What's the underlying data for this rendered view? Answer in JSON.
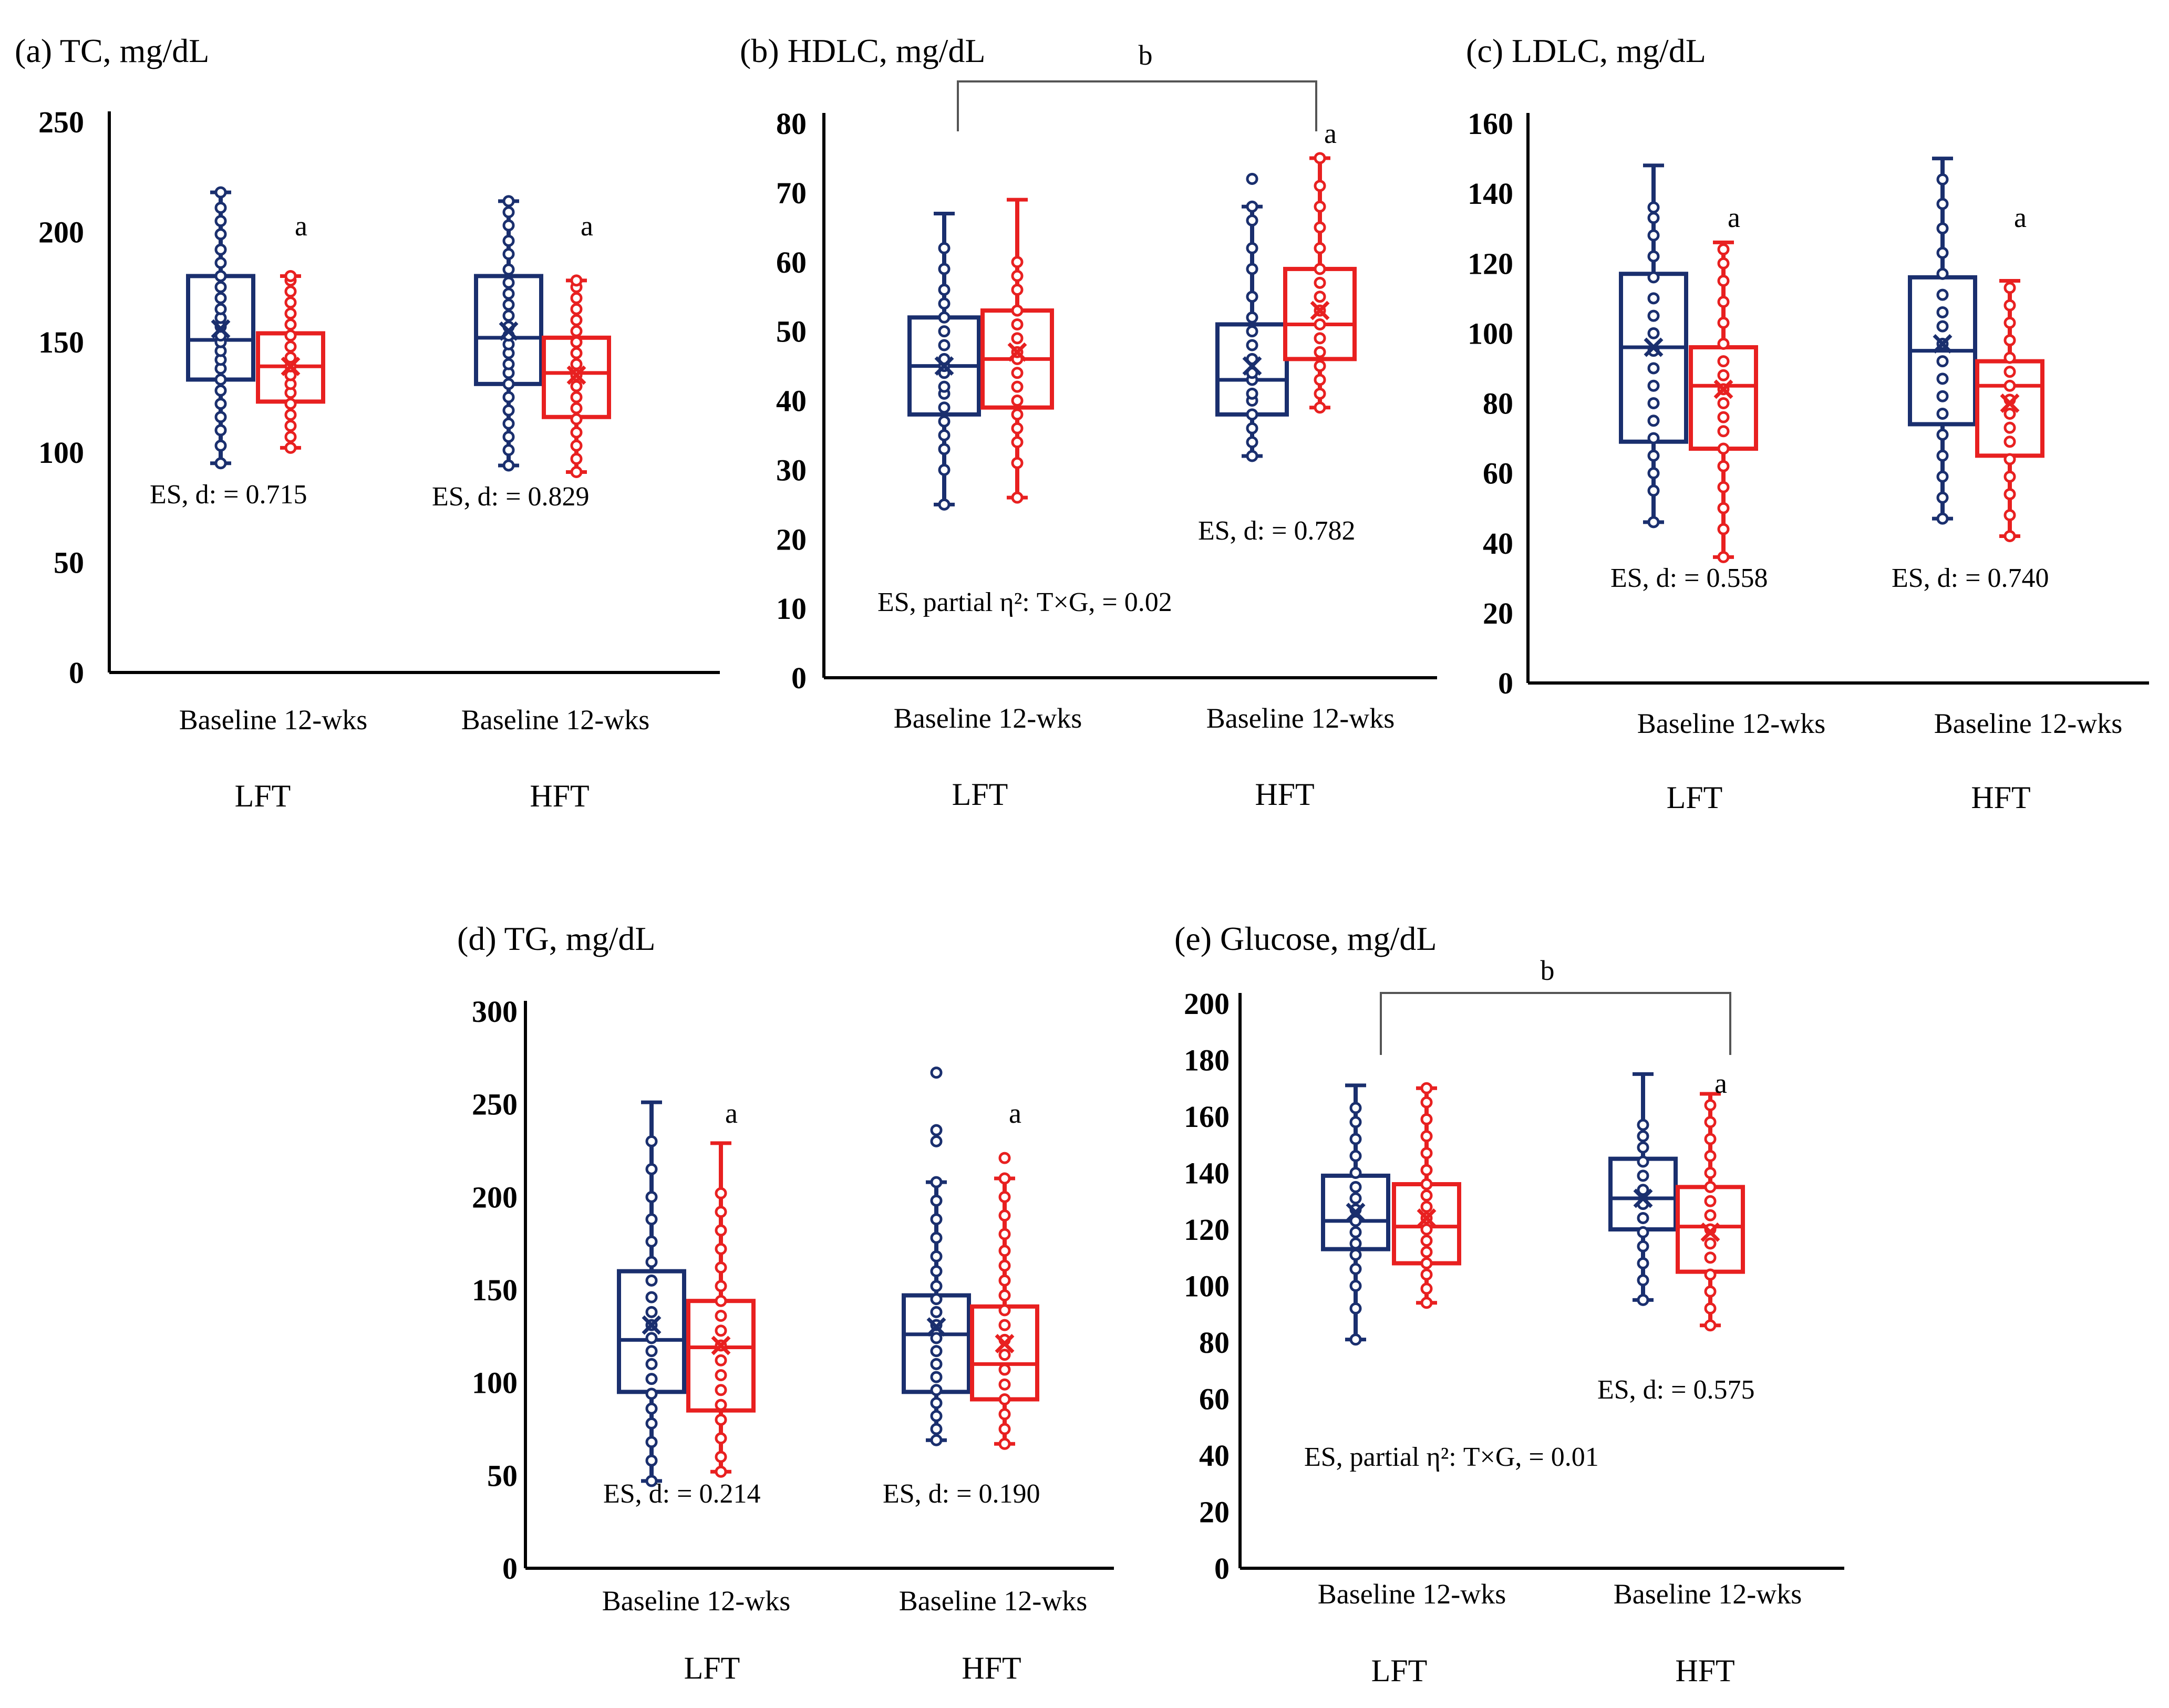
{
  "colors": {
    "baseline": "#1a2f6e",
    "week12": "#e82020",
    "axis": "#000000",
    "bracket": "#555555"
  },
  "chart_data": [
    {
      "type": "box",
      "panel": "a",
      "title": "(a) TC, mg/dL",
      "ylim": [
        0,
        250
      ],
      "yticks": [
        0,
        50,
        100,
        150,
        200,
        250
      ],
      "x_tick_labels": [
        "Baseline 12-wks",
        "Baseline 12-wks"
      ],
      "groups": [
        "LFT",
        "HFT"
      ],
      "series": [
        {
          "group": "LFT",
          "name": "Baseline",
          "color": "baseline",
          "min": 95,
          "q1": 133,
          "median": 151,
          "q3": 180,
          "max": 218,
          "mean": 156,
          "points": [
            95,
            103,
            110,
            116,
            122,
            128,
            133,
            138,
            142,
            146,
            150,
            153,
            157,
            161,
            165,
            170,
            175,
            180,
            186,
            192,
            199,
            205,
            211,
            218
          ]
        },
        {
          "group": "LFT",
          "name": "12-wks",
          "color": "week12",
          "min": 102,
          "q1": 123,
          "median": 139,
          "q3": 154,
          "max": 180,
          "mean": 139,
          "label": "a",
          "points": [
            102,
            107,
            112,
            117,
            122,
            127,
            131,
            135,
            139,
            143,
            148,
            153,
            158,
            163,
            168,
            173,
            178,
            180
          ]
        },
        {
          "group": "HFT",
          "name": "Baseline",
          "color": "baseline",
          "min": 94,
          "q1": 131,
          "median": 152,
          "q3": 180,
          "max": 214,
          "mean": 155,
          "points": [
            94,
            101,
            107,
            113,
            119,
            125,
            131,
            136,
            140,
            145,
            149,
            153,
            157,
            162,
            167,
            172,
            177,
            183,
            190,
            196,
            203,
            209,
            214
          ]
        },
        {
          "group": "HFT",
          "name": "12-wks",
          "color": "week12",
          "min": 91,
          "q1": 116,
          "median": 136,
          "q3": 152,
          "max": 178,
          "mean": 135,
          "label": "a",
          "points": [
            91,
            97,
            103,
            109,
            115,
            120,
            125,
            130,
            135,
            140,
            145,
            150,
            155,
            160,
            165,
            170,
            175,
            178
          ]
        }
      ],
      "effect_sizes": [
        "ES,  d: = 0.715",
        "ES,  d: = 0.829"
      ],
      "group_labels": [
        "LFT",
        "HFT"
      ]
    },
    {
      "type": "box",
      "panel": "b",
      "title": "(b) HDLC,  mg/dL",
      "ylim": [
        0,
        80
      ],
      "yticks": [
        0,
        10,
        20,
        30,
        40,
        50,
        60,
        70,
        80
      ],
      "x_tick_labels": [
        "Baseline 12-wks",
        "Baseline 12-wks"
      ],
      "groups": [
        "LFT",
        "HFT"
      ],
      "bracket_label": "b",
      "series": [
        {
          "group": "LFT",
          "name": "Baseline",
          "color": "baseline",
          "min": 25,
          "q1": 38,
          "median": 45,
          "q3": 52,
          "max": 67,
          "mean": 45,
          "points": [
            25,
            30,
            33,
            35,
            37,
            39,
            41,
            42,
            44,
            45,
            46,
            48,
            50,
            52,
            54,
            56,
            59,
            62
          ]
        },
        {
          "group": "LFT",
          "name": "12-wks",
          "color": "week12",
          "min": 26,
          "q1": 39,
          "median": 46,
          "q3": 53,
          "max": 69,
          "mean": 47,
          "points": [
            26,
            31,
            34,
            36,
            38,
            40,
            42,
            44,
            46,
            47,
            49,
            51,
            53,
            56,
            58,
            60
          ]
        },
        {
          "group": "HFT",
          "name": "Baseline",
          "color": "baseline",
          "min": 32,
          "q1": 38,
          "median": 43,
          "q3": 51,
          "max": 68,
          "mean": 45,
          "points": [
            32,
            34,
            36,
            38,
            40,
            41,
            43,
            44,
            46,
            48,
            50,
            52,
            55,
            59,
            62,
            66,
            68,
            72
          ]
        },
        {
          "group": "HFT",
          "name": "12-wks",
          "color": "week12",
          "min": 39,
          "q1": 46,
          "median": 51,
          "q3": 59,
          "max": 75,
          "mean": 53,
          "label": "a",
          "points": [
            39,
            41,
            43,
            45,
            47,
            49,
            51,
            53,
            55,
            57,
            59,
            62,
            65,
            68,
            71,
            75
          ]
        }
      ],
      "effect_sizes": [
        "ES,  d: = 0.782"
      ],
      "anova": "ES,  partial η²:  T×G, = 0.02",
      "group_labels": [
        "LFT",
        "HFT"
      ]
    },
    {
      "type": "box",
      "panel": "c",
      "title": "(c) LDLC,  mg/dL",
      "ylim": [
        0,
        160
      ],
      "yticks": [
        0,
        20,
        40,
        60,
        80,
        100,
        120,
        140,
        160
      ],
      "x_tick_labels": [
        "Baseline 12-wks",
        "Baseline 12-wks"
      ],
      "groups": [
        "LFT",
        "HFT"
      ],
      "series": [
        {
          "group": "LFT",
          "name": "Baseline",
          "color": "baseline",
          "min": 46,
          "q1": 69,
          "median": 96,
          "q3": 117,
          "max": 148,
          "mean": 96,
          "points": [
            46,
            55,
            60,
            65,
            70,
            75,
            80,
            85,
            90,
            95,
            100,
            105,
            110,
            116,
            122,
            128,
            133,
            136
          ]
        },
        {
          "group": "LFT",
          "name": "12-wks",
          "color": "week12",
          "min": 36,
          "q1": 67,
          "median": 85,
          "q3": 96,
          "max": 126,
          "mean": 84,
          "label": "a",
          "points": [
            36,
            44,
            50,
            56,
            62,
            67,
            72,
            76,
            80,
            84,
            88,
            92,
            97,
            103,
            109,
            115,
            120,
            124
          ]
        },
        {
          "group": "HFT",
          "name": "Baseline",
          "color": "baseline",
          "min": 47,
          "q1": 74,
          "median": 95,
          "q3": 116,
          "max": 150,
          "mean": 97,
          "points": [
            47,
            53,
            59,
            65,
            71,
            77,
            82,
            87,
            92,
            97,
            102,
            106,
            111,
            117,
            123,
            130,
            137,
            144
          ]
        },
        {
          "group": "HFT",
          "name": "12-wks",
          "color": "week12",
          "min": 42,
          "q1": 65,
          "median": 85,
          "q3": 92,
          "max": 115,
          "mean": 80,
          "label": "a",
          "points": [
            42,
            48,
            54,
            59,
            64,
            69,
            73,
            77,
            81,
            85,
            89,
            93,
            98,
            103,
            108,
            113
          ]
        }
      ],
      "effect_sizes": [
        "ES,  d: = 0.558",
        "ES,  d: = 0.740"
      ],
      "group_labels": [
        "LFT",
        "HFT"
      ]
    },
    {
      "type": "box",
      "panel": "d",
      "title": "(d) TG, mg/dL",
      "ylim": [
        0,
        300
      ],
      "yticks": [
        0,
        50,
        100,
        150,
        200,
        250,
        300
      ],
      "x_tick_labels": [
        "Baseline 12-wks",
        "Baseline 12-wks"
      ],
      "groups": [
        "LFT",
        "HFT"
      ],
      "series": [
        {
          "group": "LFT",
          "name": "Baseline",
          "color": "baseline",
          "min": 47,
          "q1": 95,
          "median": 123,
          "q3": 160,
          "max": 251,
          "mean": 131,
          "points": [
            47,
            58,
            68,
            78,
            86,
            94,
            102,
            110,
            117,
            124,
            131,
            138,
            146,
            155,
            165,
            176,
            188,
            200,
            215,
            230
          ]
        },
        {
          "group": "LFT",
          "name": "12-wks",
          "color": "week12",
          "min": 52,
          "q1": 85,
          "median": 119,
          "q3": 144,
          "max": 229,
          "mean": 120,
          "label": "a",
          "points": [
            52,
            60,
            70,
            80,
            88,
            96,
            104,
            112,
            120,
            128,
            136,
            144,
            152,
            162,
            172,
            182,
            192,
            202
          ]
        },
        {
          "group": "HFT",
          "name": "Baseline",
          "color": "baseline",
          "min": 69,
          "q1": 95,
          "median": 126,
          "q3": 147,
          "max": 208,
          "mean": 130,
          "points": [
            69,
            75,
            82,
            89,
            96,
            103,
            110,
            117,
            124,
            131,
            138,
            145,
            152,
            160,
            168,
            178,
            188,
            198,
            208,
            230,
            236,
            267
          ]
        },
        {
          "group": "HFT",
          "name": "12-wks",
          "color": "week12",
          "min": 67,
          "q1": 91,
          "median": 110,
          "q3": 141,
          "max": 210,
          "mean": 121,
          "label": "a",
          "points": [
            67,
            75,
            83,
            91,
            99,
            107,
            115,
            123,
            131,
            139,
            147,
            155,
            163,
            171,
            180,
            190,
            200,
            210,
            221
          ]
        }
      ],
      "effect_sizes": [
        "ES,  d: = 0.214",
        "ES,  d: = 0.190"
      ],
      "group_labels": [
        "LFT",
        "HFT"
      ]
    },
    {
      "type": "box",
      "panel": "e",
      "title": "(e) Glucose,  mg/dL",
      "ylim": [
        0,
        200
      ],
      "yticks": [
        0,
        20,
        40,
        60,
        80,
        100,
        120,
        140,
        160,
        180,
        200
      ],
      "x_tick_labels": [
        "Baseline 12-wks",
        "Baseline 12-wks"
      ],
      "groups": [
        "LFT",
        "HFT"
      ],
      "bracket_label": "b",
      "series": [
        {
          "group": "LFT",
          "name": "Baseline",
          "color": "baseline",
          "min": 81,
          "q1": 113,
          "median": 123,
          "q3": 139,
          "max": 171,
          "mean": 126,
          "points": [
            81,
            92,
            100,
            106,
            111,
            115,
            119,
            123,
            127,
            131,
            135,
            140,
            146,
            152,
            158,
            163
          ]
        },
        {
          "group": "LFT",
          "name": "12-wks",
          "color": "week12",
          "min": 94,
          "q1": 108,
          "median": 121,
          "q3": 136,
          "max": 170,
          "mean": 124,
          "points": [
            94,
            99,
            104,
            108,
            112,
            116,
            120,
            124,
            128,
            132,
            136,
            141,
            147,
            153,
            159,
            165,
            170
          ]
        },
        {
          "group": "HFT",
          "name": "Baseline",
          "color": "baseline",
          "min": 95,
          "q1": 120,
          "median": 131,
          "q3": 145,
          "max": 175,
          "mean": 131,
          "points": [
            95,
            102,
            108,
            114,
            119,
            124,
            129,
            134,
            139,
            144,
            149,
            153,
            157
          ]
        },
        {
          "group": "HFT",
          "name": "12-wks",
          "color": "week12",
          "min": 86,
          "q1": 105,
          "median": 121,
          "q3": 135,
          "max": 168,
          "mean": 119,
          "label": "a",
          "points": [
            86,
            92,
            98,
            104,
            110,
            115,
            120,
            125,
            130,
            135,
            140,
            146,
            152,
            158,
            164
          ]
        }
      ],
      "effect_sizes": [
        "ES,  d: = 0.575"
      ],
      "anova": "ES,  partial η²:  T×G, = 0.01",
      "group_labels": [
        "LFT",
        "HFT"
      ]
    }
  ]
}
